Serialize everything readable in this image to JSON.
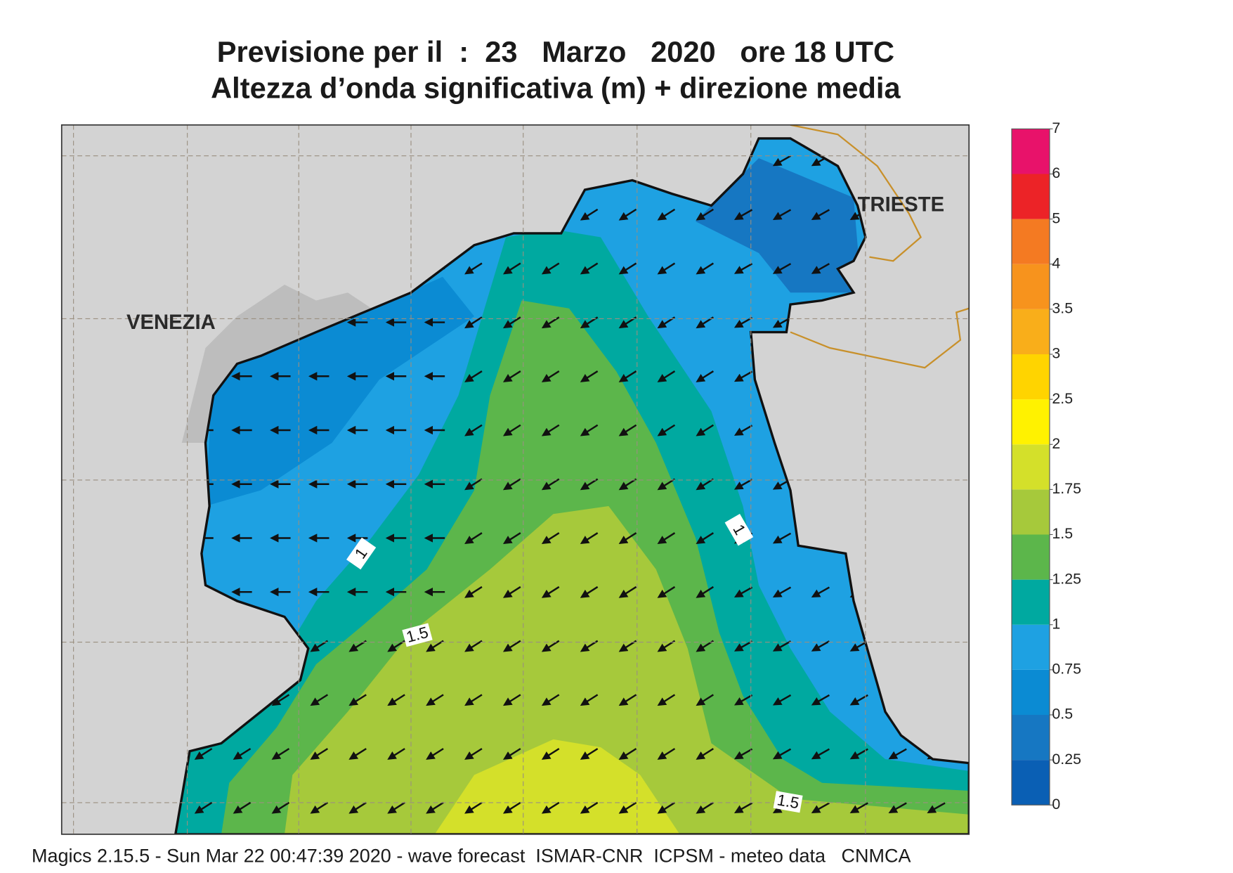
{
  "title": {
    "line1": "Previsione per il  :  23   Marzo   2020   ore 18 UTC",
    "line2": "Altezza d’onda significativa (m) + direzione media"
  },
  "map": {
    "labels": [
      "VENEZIA",
      "TRIESTE"
    ],
    "contour_labels": [
      1,
      1.5,
      1,
      1.5
    ]
  },
  "colorbar": {
    "ticks": [
      0,
      0.25,
      0.5,
      0.75,
      1,
      1.25,
      1.5,
      1.75,
      2,
      2.5,
      3,
      3.5,
      4,
      5,
      6,
      7
    ],
    "colors": [
      "#0a5fb4",
      "#1677c2",
      "#0b8bd3",
      "#1ea1e2",
      "#00a9a0",
      "#5cb64b",
      "#a6c93b",
      "#d4e02a",
      "#fff200",
      "#ffd400",
      "#f9ae1a",
      "#f7931d",
      "#f47a22",
      "#ec2327",
      "#e8126a"
    ]
  },
  "footer": "Magics 2.15.5 - Sun Mar 22 00:47:39 2020 - wave forecast  ISMAR-CNR  ICPSM - meteo data   CNMCA"
}
